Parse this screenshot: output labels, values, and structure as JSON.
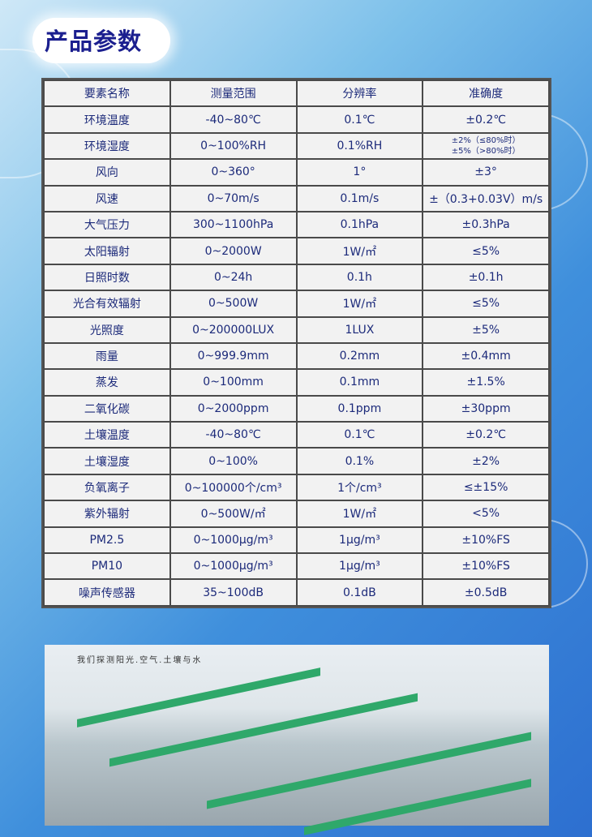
{
  "title": "产品参数",
  "table": {
    "headers": [
      "要素名称",
      "测量范围",
      "分辨率",
      "准确度"
    ],
    "rows": [
      [
        "环境温度",
        "-40~80℃",
        "0.1℃",
        "±0.2℃"
      ],
      [
        "环境湿度",
        "0~100%RH",
        "0.1%RH",
        "±2%（≤80%时）\n±5%（>80%时）"
      ],
      [
        "风向",
        "0~360°",
        "1°",
        "±3°"
      ],
      [
        "风速",
        "0~70m/s",
        "0.1m/s",
        "±（0.3+0.03V）m/s"
      ],
      [
        "大气压力",
        "300~1100hPa",
        "0.1hPa",
        "±0.3hPa"
      ],
      [
        "太阳辐射",
        "0~2000W",
        "1W/㎡",
        "≤5%"
      ],
      [
        "日照时数",
        "0~24h",
        "0.1h",
        "±0.1h"
      ],
      [
        "光合有效辐射",
        "0~500W",
        "1W/㎡",
        "≤5%"
      ],
      [
        "光照度",
        "0~200000LUX",
        "1LUX",
        "±5%"
      ],
      [
        "雨量",
        "0~999.9mm",
        "0.2mm",
        "±0.4mm"
      ],
      [
        "蒸发",
        "0~100mm",
        "0.1mm",
        "±1.5%"
      ],
      [
        "二氧化碳",
        "0~2000ppm",
        "0.1ppm",
        "±30ppm"
      ],
      [
        "土壤温度",
        "-40~80℃",
        "0.1℃",
        "±0.2℃"
      ],
      [
        "土壤湿度",
        "0~100%",
        "0.1%",
        "±2%"
      ],
      [
        "负氧离子",
        "0~100000个/cm³",
        "1个/cm³",
        "≤±15%"
      ],
      [
        "紫外辐射",
        "0~500W/㎡",
        "1W/㎡",
        "<5%"
      ],
      [
        "PM2.5",
        "0~1000μg/m³",
        "1μg/m³",
        "±10%FS"
      ],
      [
        "PM10",
        "0~1000μg/m³",
        "1μg/m³",
        "±10%FS"
      ],
      [
        "噪声传感器",
        "35~100dB",
        "0.1dB",
        "±0.5dB"
      ]
    ]
  },
  "photo": {
    "banner": "我们探测阳光.空气.土壤与水"
  },
  "colors": {
    "text": "#1c2a7a",
    "title": "#1b1f8f",
    "bench": "#2fa86a"
  }
}
